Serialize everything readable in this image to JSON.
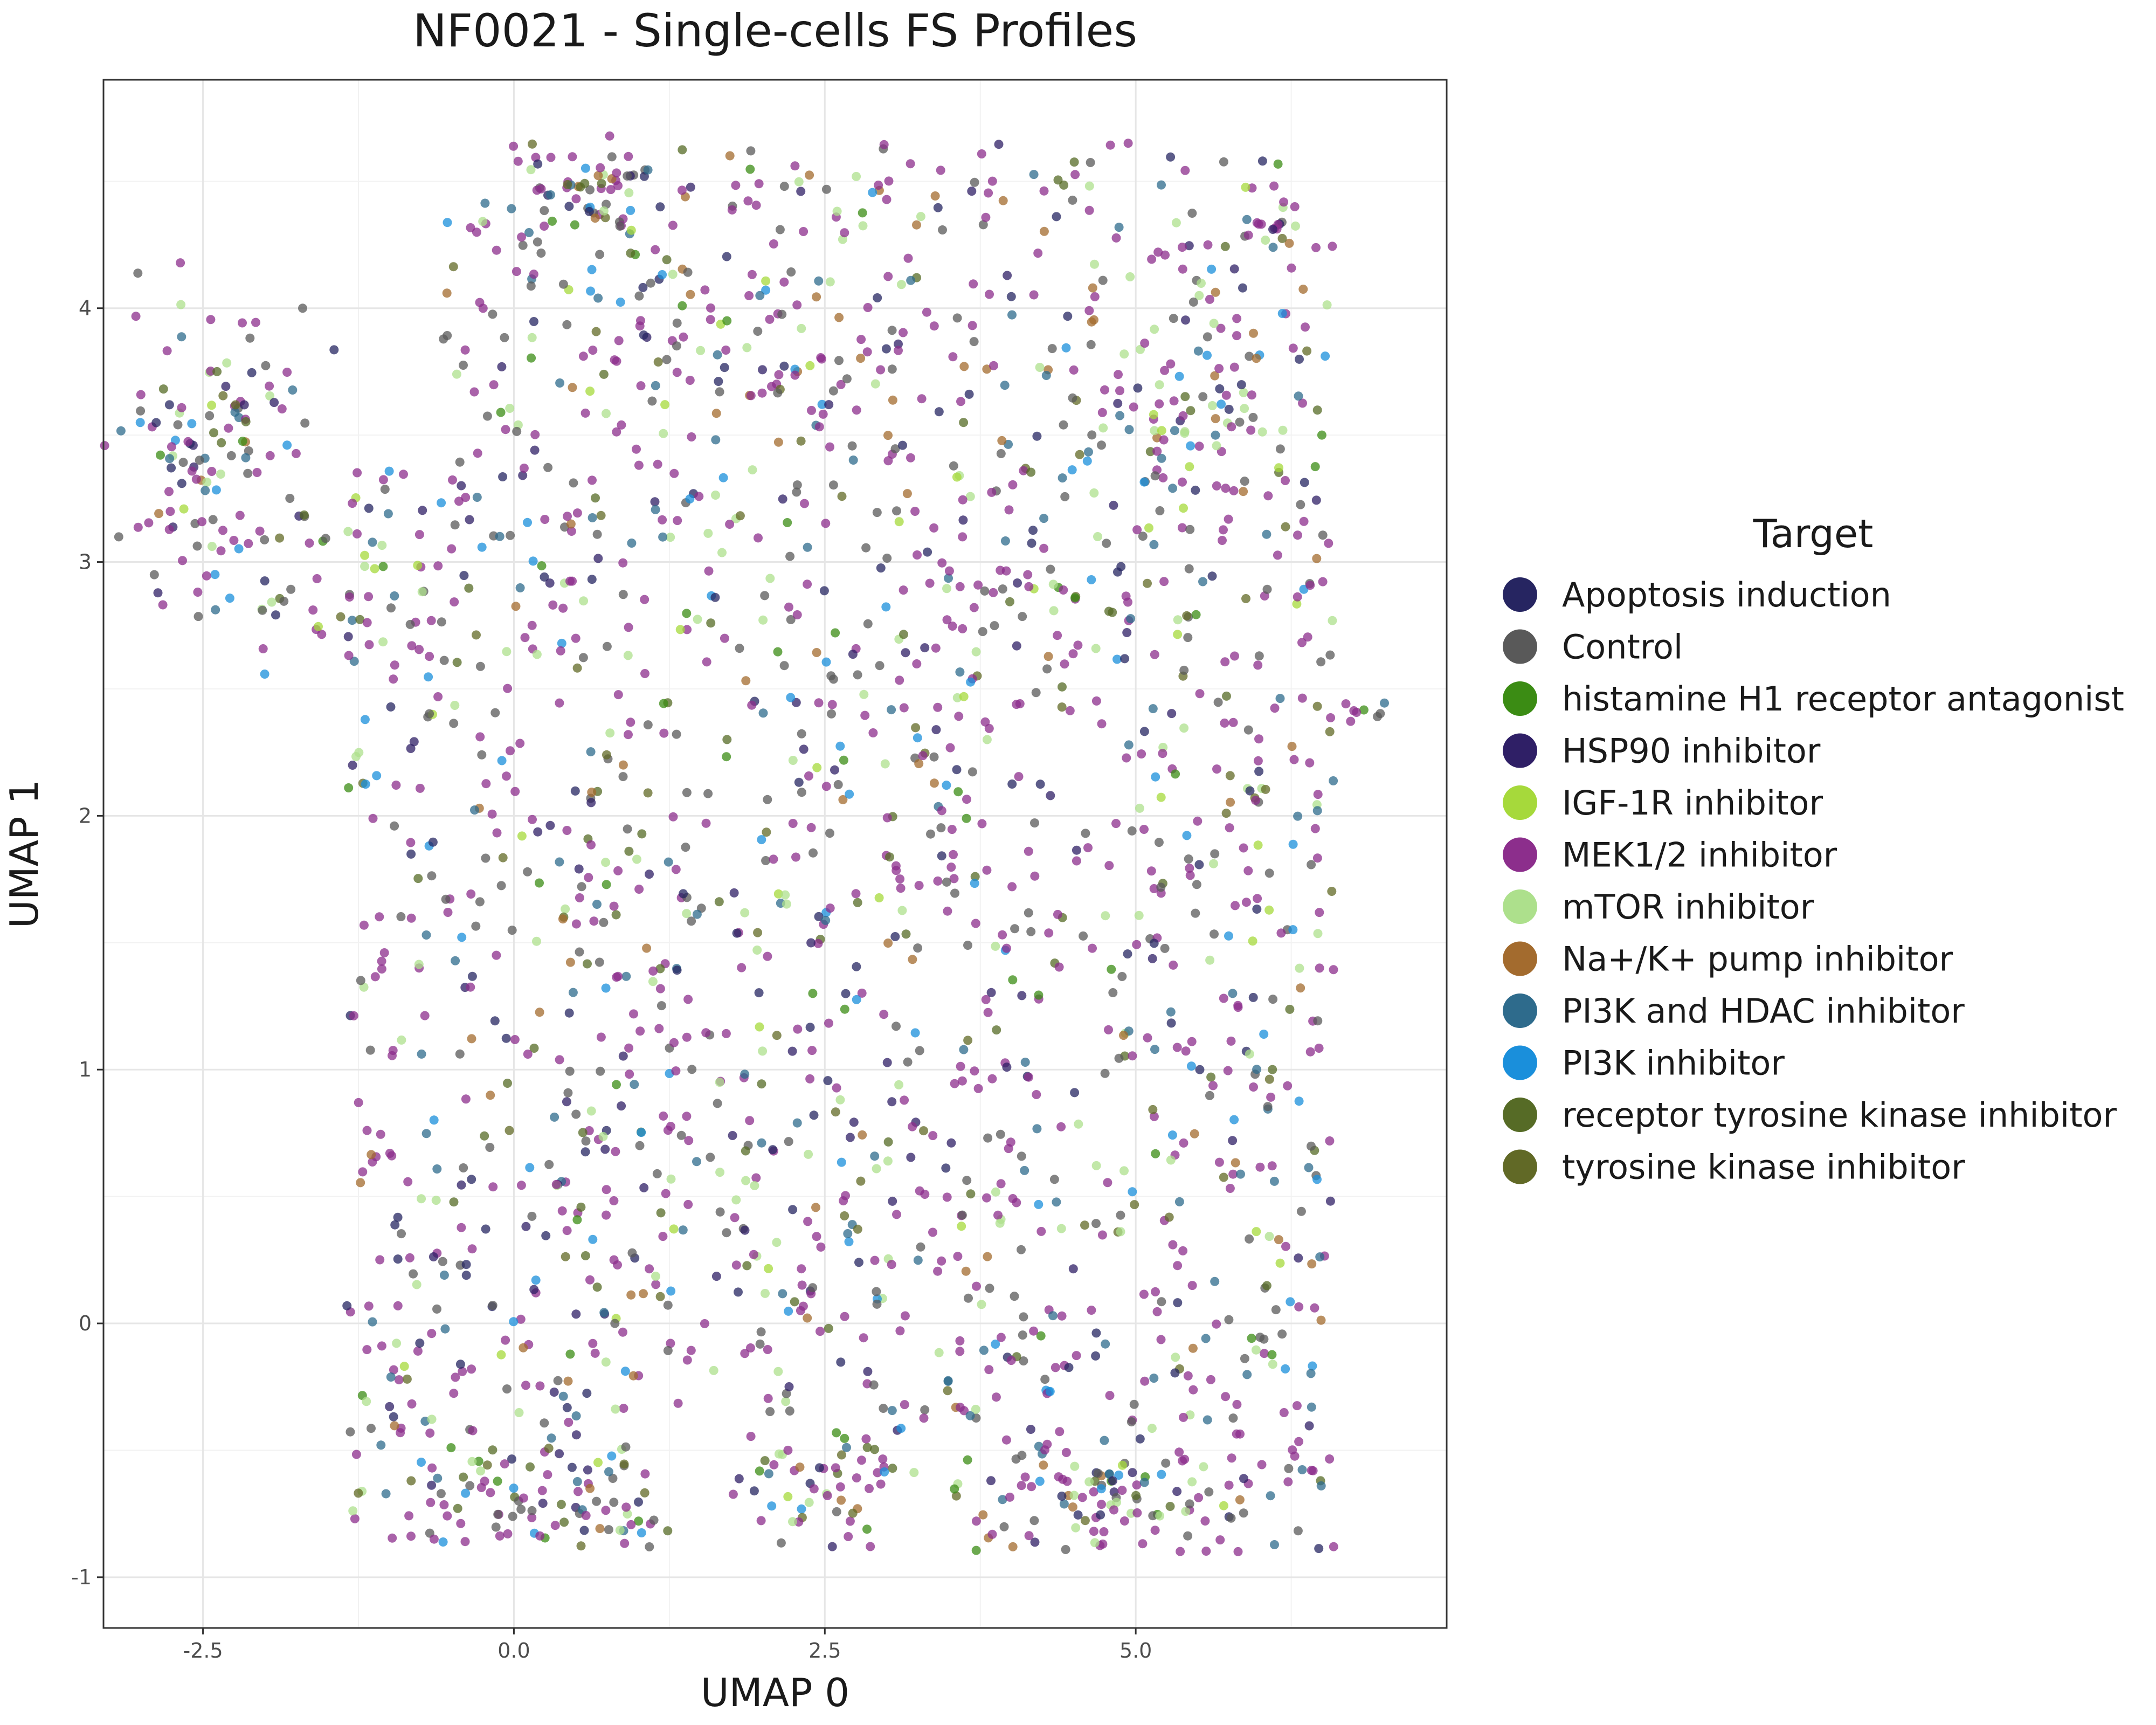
{
  "chart_data": {
    "type": "scatter",
    "title": "NF0021 - Single-cells FS Profiles",
    "xlabel": "UMAP 0",
    "ylabel": "UMAP 1",
    "xlim": [
      -3.3,
      7.5
    ],
    "ylim": [
      -1.2,
      4.9
    ],
    "x_ticks": [
      -2.5,
      0.0,
      2.5,
      5.0
    ],
    "x_tick_labels": [
      "-2.5",
      "0.0",
      "2.5",
      "5.0"
    ],
    "y_ticks": [
      -1,
      0,
      1,
      2,
      3,
      4
    ],
    "y_tick_labels": [
      "-1",
      "0",
      "1",
      "2",
      "3",
      "4"
    ],
    "grid": true,
    "legend_position": "right",
    "legend_title": "Target",
    "n_points_approx": 2200,
    "series": [
      {
        "name": "Apoptosis induction",
        "color": "#262561"
      },
      {
        "name": "Control",
        "color": "#595959"
      },
      {
        "name": "histamine H1 receptor antagonist",
        "color": "#3b8c14"
      },
      {
        "name": "HSP90 inhibitor",
        "color": "#2f1f66"
      },
      {
        "name": "IGF-1R inhibitor",
        "color": "#a6d93b"
      },
      {
        "name": "MEK1/2 inhibitor",
        "color": "#8c2e8c"
      },
      {
        "name": "mTOR inhibitor",
        "color": "#ade08c"
      },
      {
        "name": "Na+/K+ pump inhibitor",
        "color": "#a36b2e"
      },
      {
        "name": "PI3K and HDAC inhibitor",
        "color": "#2e6b8c"
      },
      {
        "name": "PI3K inhibitor",
        "color": "#1a8fdb"
      },
      {
        "name": "receptor tyrosine kinase inhibitor",
        "color": "#566b26"
      },
      {
        "name": "tyrosine kinase inhibitor",
        "color": "#616926"
      }
    ]
  }
}
